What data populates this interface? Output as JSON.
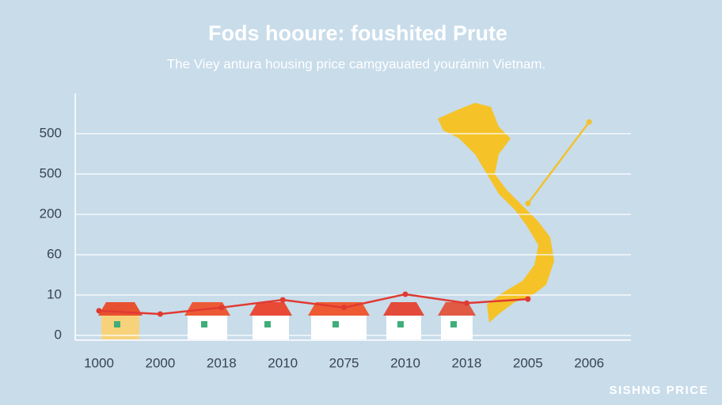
{
  "chart_data": {
    "type": "line",
    "title": "Fods hooure: foushited Prute",
    "subtitle": "The Viey antura housing price camgyauated yourámin Vietnam.",
    "watermark": "SISHNG PRICE",
    "categories": [
      "1000",
      "2000",
      "2018",
      "2010",
      "2075",
      "2010",
      "2018",
      "2005",
      "2006"
    ],
    "series": [
      {
        "color": "#e03a32",
        "values": [
          0.61,
          0.53,
          0.69,
          0.88,
          0.69,
          1.02,
          0.8,
          0.9,
          null
        ]
      },
      {
        "color": "#f2c22e",
        "values": [
          null,
          null,
          null,
          null,
          null,
          null,
          null,
          3.27,
          5.29
        ]
      }
    ],
    "ylim": [
      0,
      6
    ],
    "yticks": [
      {
        "value": 0,
        "label": "0"
      },
      {
        "value": 1,
        "label": "10"
      },
      {
        "value": 2,
        "label": "60"
      },
      {
        "value": 3,
        "label": "200"
      },
      {
        "value": 4,
        "label": "500"
      },
      {
        "value": 5,
        "label": "500"
      }
    ],
    "grid": true
  }
}
